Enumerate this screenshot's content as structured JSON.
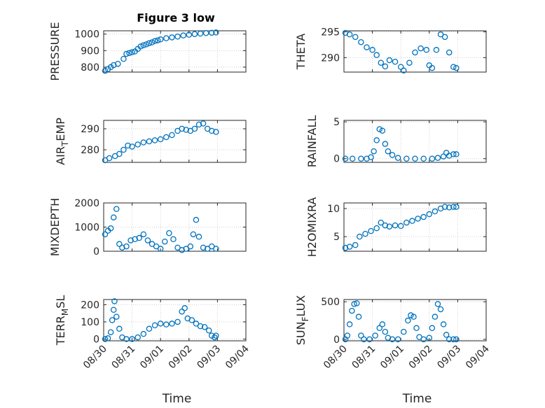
{
  "chart_data": {
    "type": "scatter",
    "title": "Figure 3 low",
    "marker": "open-circle",
    "color": "#0072BD",
    "grid": true,
    "x_tick_labels": [
      "08/30",
      "08/31",
      "09/01",
      "09/02",
      "09/03",
      "09/04"
    ],
    "xlabel": "Time",
    "x_range_days": [
      0,
      5
    ],
    "panels": [
      {
        "id": "pressure",
        "ylabel": "PRESSURE",
        "ylim": [
          770,
          1020
        ],
        "yticks": [
          800,
          900,
          1000
        ],
        "ytick_labels": [
          "800",
          "900",
          "1000"
        ],
        "points": [
          [
            0.05,
            778
          ],
          [
            0.15,
            788
          ],
          [
            0.25,
            800
          ],
          [
            0.35,
            812
          ],
          [
            0.5,
            820
          ],
          [
            0.7,
            850
          ],
          [
            0.8,
            880
          ],
          [
            0.9,
            885
          ],
          [
            1.0,
            890
          ],
          [
            1.1,
            895
          ],
          [
            1.2,
            910
          ],
          [
            1.3,
            925
          ],
          [
            1.4,
            932
          ],
          [
            1.5,
            938
          ],
          [
            1.6,
            945
          ],
          [
            1.7,
            950
          ],
          [
            1.8,
            958
          ],
          [
            1.9,
            962
          ],
          [
            2.0,
            968
          ],
          [
            2.2,
            975
          ],
          [
            2.4,
            980
          ],
          [
            2.6,
            985
          ],
          [
            2.8,
            992
          ],
          [
            3.0,
            996
          ],
          [
            3.2,
            1000
          ],
          [
            3.4,
            1003
          ],
          [
            3.6,
            1006
          ],
          [
            3.8,
            1008
          ],
          [
            3.95,
            1010
          ]
        ]
      },
      {
        "id": "theta",
        "ylabel": "THETA",
        "ylim": [
          287.2,
          295.2
        ],
        "yticks": [
          290,
          295
        ],
        "ytick_labels": [
          "290",
          "295"
        ],
        "points": [
          [
            0.05,
            294.8
          ],
          [
            0.2,
            294.5
          ],
          [
            0.4,
            294
          ],
          [
            0.6,
            293
          ],
          [
            0.8,
            292
          ],
          [
            1.0,
            291.5
          ],
          [
            1.15,
            290.5
          ],
          [
            1.3,
            289
          ],
          [
            1.45,
            288.3
          ],
          [
            1.6,
            289.5
          ],
          [
            1.8,
            289.2
          ],
          [
            2.0,
            288.2
          ],
          [
            2.1,
            287.5
          ],
          [
            2.3,
            289
          ],
          [
            2.5,
            291
          ],
          [
            2.7,
            291.8
          ],
          [
            2.9,
            291.5
          ],
          [
            3.0,
            288.5
          ],
          [
            3.1,
            288
          ],
          [
            3.25,
            291.5
          ],
          [
            3.4,
            294.5
          ],
          [
            3.55,
            294
          ],
          [
            3.7,
            291
          ],
          [
            3.85,
            288.2
          ],
          [
            3.95,
            288
          ]
        ]
      },
      {
        "id": "air_temp",
        "ylabel": "AIR_TEMP",
        "ylim": [
          274,
          294
        ],
        "yticks": [
          280,
          290
        ],
        "ytick_labels": [
          "280",
          "290"
        ],
        "points": [
          [
            0.05,
            275
          ],
          [
            0.2,
            276
          ],
          [
            0.4,
            277
          ],
          [
            0.55,
            278
          ],
          [
            0.7,
            280
          ],
          [
            0.85,
            282
          ],
          [
            1.0,
            281.5
          ],
          [
            1.2,
            282.5
          ],
          [
            1.4,
            283.5
          ],
          [
            1.6,
            284
          ],
          [
            1.8,
            284.5
          ],
          [
            2.0,
            285
          ],
          [
            2.2,
            286
          ],
          [
            2.4,
            287
          ],
          [
            2.6,
            289
          ],
          [
            2.75,
            290
          ],
          [
            2.9,
            289.5
          ],
          [
            3.05,
            289
          ],
          [
            3.2,
            290
          ],
          [
            3.35,
            292
          ],
          [
            3.5,
            292.5
          ],
          [
            3.65,
            290
          ],
          [
            3.8,
            289
          ],
          [
            3.95,
            288.5
          ]
        ]
      },
      {
        "id": "rainfall",
        "ylabel": "RAINFALL",
        "ylim": [
          -0.5,
          5.2
        ],
        "yticks": [
          0,
          5
        ],
        "ytick_labels": [
          "0",
          "5"
        ],
        "points": [
          [
            0.05,
            0
          ],
          [
            0.3,
            0
          ],
          [
            0.6,
            0
          ],
          [
            0.8,
            0
          ],
          [
            0.95,
            0.2
          ],
          [
            1.05,
            1
          ],
          [
            1.15,
            2.5
          ],
          [
            1.25,
            4
          ],
          [
            1.35,
            3.8
          ],
          [
            1.45,
            2
          ],
          [
            1.55,
            1
          ],
          [
            1.7,
            0.5
          ],
          [
            1.9,
            0.1
          ],
          [
            2.2,
            0
          ],
          [
            2.5,
            0
          ],
          [
            2.8,
            0
          ],
          [
            3.1,
            0
          ],
          [
            3.3,
            0.1
          ],
          [
            3.5,
            0.3
          ],
          [
            3.6,
            0.8
          ],
          [
            3.7,
            0.4
          ],
          [
            3.85,
            0.6
          ],
          [
            3.95,
            0.6
          ]
        ]
      },
      {
        "id": "mixdepth",
        "ylabel": "MIXDEPTH",
        "ylim": [
          0,
          2000
        ],
        "yticks": [
          0,
          1000,
          2000
        ],
        "ytick_labels": [
          "0",
          "1000",
          "2000"
        ],
        "points": [
          [
            0.05,
            700
          ],
          [
            0.15,
            850
          ],
          [
            0.25,
            950
          ],
          [
            0.35,
            1400
          ],
          [
            0.45,
            1750
          ],
          [
            0.55,
            300
          ],
          [
            0.65,
            150
          ],
          [
            0.8,
            200
          ],
          [
            0.95,
            450
          ],
          [
            1.1,
            500
          ],
          [
            1.25,
            550
          ],
          [
            1.4,
            700
          ],
          [
            1.55,
            450
          ],
          [
            1.7,
            300
          ],
          [
            1.85,
            200
          ],
          [
            2.0,
            100
          ],
          [
            2.15,
            400
          ],
          [
            2.3,
            750
          ],
          [
            2.45,
            500
          ],
          [
            2.6,
            150
          ],
          [
            2.75,
            50
          ],
          [
            2.9,
            100
          ],
          [
            3.05,
            200
          ],
          [
            3.15,
            700
          ],
          [
            3.25,
            1300
          ],
          [
            3.35,
            600
          ],
          [
            3.5,
            150
          ],
          [
            3.65,
            100
          ],
          [
            3.8,
            200
          ],
          [
            3.95,
            100
          ]
        ]
      },
      {
        "id": "h2omixra",
        "ylabel": "H2OMIXRA",
        "ylim": [
          2.4,
          11
        ],
        "yticks": [
          5,
          10
        ],
        "ytick_labels": [
          "5",
          "10"
        ],
        "points": [
          [
            0.05,
            3
          ],
          [
            0.2,
            3.2
          ],
          [
            0.4,
            3.5
          ],
          [
            0.55,
            5
          ],
          [
            0.75,
            5.5
          ],
          [
            0.95,
            6
          ],
          [
            1.15,
            6.5
          ],
          [
            1.3,
            7.5
          ],
          [
            1.45,
            7
          ],
          [
            1.6,
            6.8
          ],
          [
            1.8,
            7
          ],
          [
            2.0,
            6.9
          ],
          [
            2.2,
            7.5
          ],
          [
            2.4,
            7.8
          ],
          [
            2.6,
            8.2
          ],
          [
            2.8,
            8.5
          ],
          [
            3.0,
            9
          ],
          [
            3.2,
            9.5
          ],
          [
            3.4,
            10
          ],
          [
            3.55,
            10.3
          ],
          [
            3.7,
            10.2
          ],
          [
            3.85,
            10.3
          ],
          [
            3.95,
            10.3
          ]
        ]
      },
      {
        "id": "terr_msl",
        "ylabel": "TERR_MSL",
        "ylim": [
          -10,
          230
        ],
        "yticks": [
          0,
          100,
          200
        ],
        "ytick_labels": [
          "0",
          "100",
          "200"
        ],
        "points": [
          [
            0.05,
            0
          ],
          [
            0.15,
            5
          ],
          [
            0.25,
            40
          ],
          [
            0.3,
            110
          ],
          [
            0.35,
            170
          ],
          [
            0.38,
            220
          ],
          [
            0.45,
            130
          ],
          [
            0.55,
            60
          ],
          [
            0.65,
            10
          ],
          [
            0.8,
            0
          ],
          [
            1.0,
            0
          ],
          [
            1.2,
            10
          ],
          [
            1.4,
            30
          ],
          [
            1.6,
            60
          ],
          [
            1.8,
            80
          ],
          [
            2.0,
            90
          ],
          [
            2.2,
            85
          ],
          [
            2.4,
            90
          ],
          [
            2.6,
            100
          ],
          [
            2.75,
            160
          ],
          [
            2.85,
            180
          ],
          [
            2.95,
            120
          ],
          [
            3.1,
            110
          ],
          [
            3.25,
            90
          ],
          [
            3.4,
            75
          ],
          [
            3.55,
            70
          ],
          [
            3.7,
            50
          ],
          [
            3.8,
            20
          ],
          [
            3.9,
            10
          ],
          [
            3.95,
            20
          ]
        ]
      },
      {
        "id": "sun_flux",
        "ylabel": "SUN_FLUX",
        "ylim": [
          -20,
          530
        ],
        "yticks": [
          0,
          500
        ],
        "ytick_labels": [
          "0",
          "500"
        ],
        "points": [
          [
            0.05,
            0
          ],
          [
            0.12,
            50
          ],
          [
            0.2,
            200
          ],
          [
            0.28,
            380
          ],
          [
            0.36,
            470
          ],
          [
            0.45,
            480
          ],
          [
            0.52,
            300
          ],
          [
            0.6,
            50
          ],
          [
            0.7,
            0
          ],
          [
            0.9,
            0
          ],
          [
            1.1,
            50
          ],
          [
            1.25,
            150
          ],
          [
            1.35,
            200
          ],
          [
            1.45,
            100
          ],
          [
            1.55,
            20
          ],
          [
            1.7,
            0
          ],
          [
            1.9,
            0
          ],
          [
            2.1,
            100
          ],
          [
            2.25,
            250
          ],
          [
            2.35,
            320
          ],
          [
            2.45,
            300
          ],
          [
            2.55,
            150
          ],
          [
            2.65,
            30
          ],
          [
            2.8,
            0
          ],
          [
            3.0,
            20
          ],
          [
            3.1,
            150
          ],
          [
            3.2,
            300
          ],
          [
            3.3,
            470
          ],
          [
            3.4,
            400
          ],
          [
            3.5,
            200
          ],
          [
            3.6,
            60
          ],
          [
            3.7,
            0
          ],
          [
            3.85,
            0
          ],
          [
            3.95,
            0
          ]
        ]
      }
    ]
  }
}
